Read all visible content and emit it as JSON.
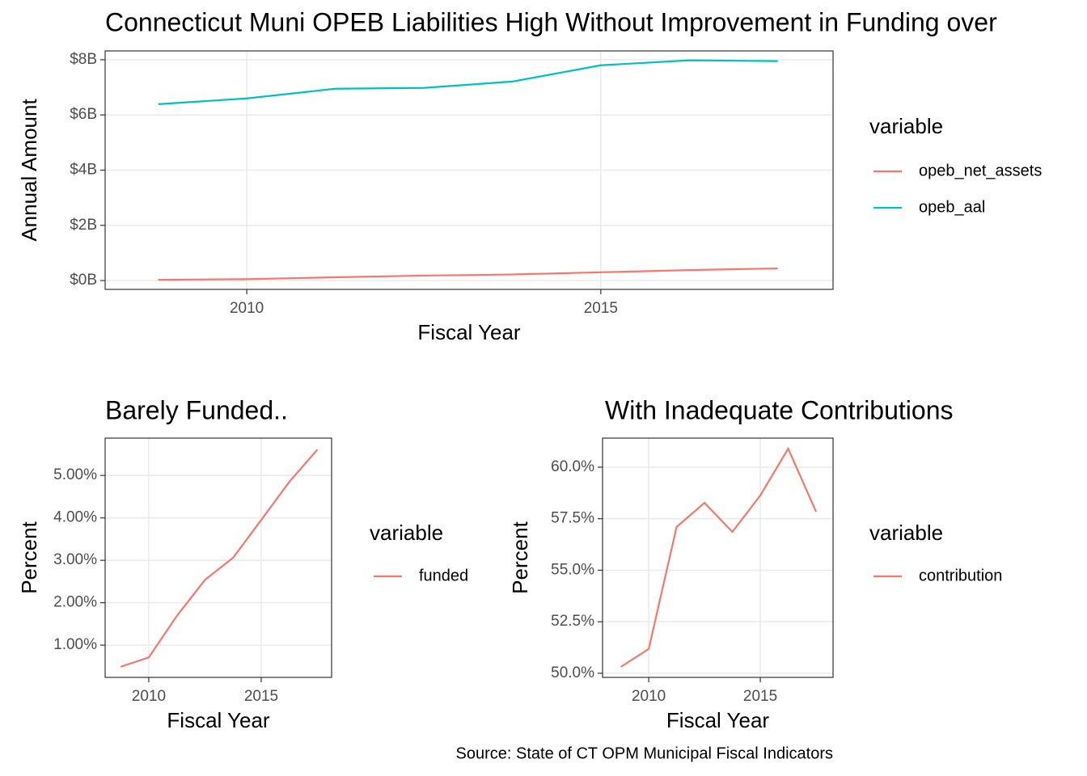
{
  "chart_data": [
    {
      "type": "line",
      "title": "Connecticut Muni OPEB Liabilities High Without Improvement in Funding over",
      "x_label": "Fiscal Year",
      "y_label": "Annual Amount",
      "legend_title": "variable",
      "legend": "right",
      "grid": true,
      "x": [
        2008.75,
        2010,
        2011.25,
        2012.5,
        2013.75,
        2015,
        2016.25,
        2017.5
      ],
      "series": [
        {
          "name": "opeb_net_assets",
          "color": "#F8766D",
          "values": [
            0.03,
            0.05,
            0.12,
            0.18,
            0.22,
            0.3,
            0.38,
            0.44
          ]
        },
        {
          "name": "opeb_aal",
          "color": "#00BFC4",
          "values": [
            6.39,
            6.6,
            6.95,
            6.98,
            7.21,
            7.8,
            7.98,
            7.95
          ]
        }
      ],
      "xlim": [
        2008.0,
        2018.28
      ],
      "xticks": [
        2010,
        2015
      ],
      "ylim": [
        -0.32,
        8.32
      ],
      "yticks": [
        {
          "value": 0,
          "label": "$0B"
        },
        {
          "value": 2,
          "label": "$2B"
        },
        {
          "value": 4,
          "label": "$4B"
        },
        {
          "value": 6,
          "label": "$6B"
        },
        {
          "value": 8,
          "label": "$8B"
        }
      ]
    },
    {
      "type": "line",
      "title": "Barely Funded..",
      "x_label": "Fiscal Year",
      "y_label": "Percent",
      "legend_title": "variable",
      "legend": "right",
      "grid": true,
      "x": [
        2008.75,
        2010,
        2011.25,
        2012.5,
        2013.75,
        2015,
        2016.25,
        2017.5
      ],
      "series": [
        {
          "name": "funded",
          "color": "#F8766D",
          "values": [
            0.49,
            0.71,
            1.69,
            2.54,
            3.06,
            3.95,
            4.85,
            5.61
          ]
        }
      ],
      "xlim": [
        2008.06,
        2018.13
      ],
      "xticks": [
        2010,
        2015
      ],
      "ylim": [
        0.24,
        5.88
      ],
      "yticks": [
        {
          "value": 1,
          "label": "1.00%"
        },
        {
          "value": 2,
          "label": "2.00%"
        },
        {
          "value": 3,
          "label": "3.00%"
        },
        {
          "value": 4,
          "label": "4.00%"
        },
        {
          "value": 5,
          "label": "5.00%"
        }
      ]
    },
    {
      "type": "line",
      "title": "With Inadequate Contributions",
      "x_label": "Fiscal Year",
      "y_label": "Percent",
      "legend_title": "variable",
      "legend": "right",
      "grid": true,
      "x": [
        2008.75,
        2010,
        2011.25,
        2012.5,
        2013.75,
        2015,
        2016.25,
        2017.5
      ],
      "series": [
        {
          "name": "contribution",
          "color": "#F8766D",
          "values": [
            50.31,
            51.18,
            57.1,
            58.27,
            56.86,
            58.63,
            60.9,
            57.84
          ]
        }
      ],
      "xlim": [
        2007.93,
        2018.26
      ],
      "xticks": [
        2010,
        2015
      ],
      "ylim": [
        49.8,
        61.41
      ],
      "yticks": [
        {
          "value": 50,
          "label": "50.0%"
        },
        {
          "value": 52.5,
          "label": "52.5%"
        },
        {
          "value": 55,
          "label": "55.0%"
        },
        {
          "value": 57.5,
          "label": "57.5%"
        },
        {
          "value": 60,
          "label": "60.0%"
        }
      ]
    }
  ],
  "caption": "Source: State of CT OPM Municipal Fiscal Indicators"
}
